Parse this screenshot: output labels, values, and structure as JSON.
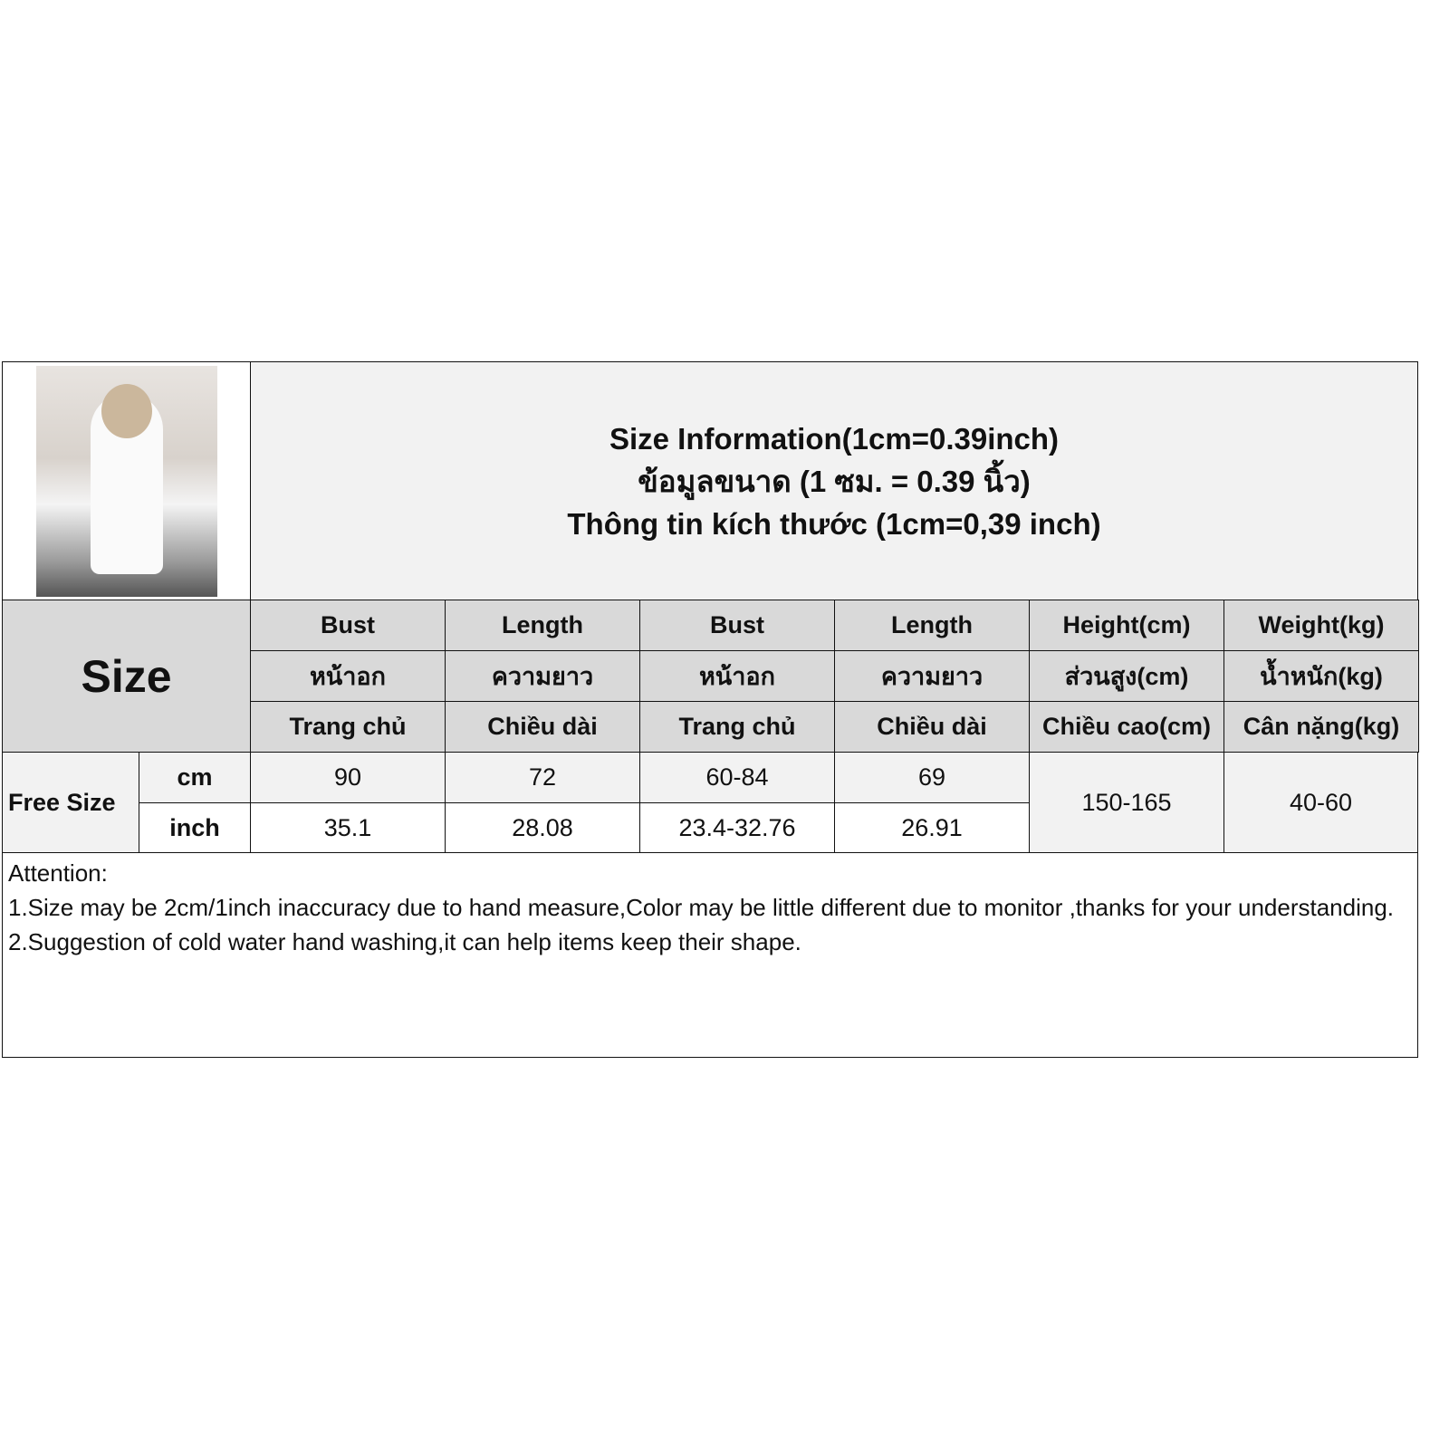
{
  "title": {
    "line1": "Size Information(1cm=0.39inch)",
    "line2": "ข้อมูลขนาด (1 ซม. = 0.39 นิ้ว)",
    "line3": "Thông tin kích thước (1cm=0,39 inch)"
  },
  "size_label": "Size",
  "columns": [
    {
      "en": "Bust",
      "th": "หน้าอก",
      "vi": "Trang chủ"
    },
    {
      "en": "Length",
      "th": "ความยาว",
      "vi": "Chiều dài"
    },
    {
      "en": "Bust",
      "th": "หน้าอก",
      "vi": "Trang chủ"
    },
    {
      "en": "Length",
      "th": "ความยาว",
      "vi": "Chiều dài"
    },
    {
      "en": "Height(cm)",
      "th": "ส่วนสูง(cm)",
      "vi": "Chiều cao(cm)"
    },
    {
      "en": "Weight(kg)",
      "th": "น้ำหนัก(kg)",
      "vi": "Cân nặng(kg)"
    }
  ],
  "row": {
    "name": "Free Size",
    "units": [
      "cm",
      "inch"
    ],
    "cm": [
      "90",
      "72",
      "60-84",
      "69"
    ],
    "inch": [
      "35.1",
      "28.08",
      "23.4-32.76",
      "26.91"
    ],
    "height": "150-165",
    "weight": "40-60"
  },
  "attention": {
    "heading": "Attention:",
    "line1": "1.Size may be 2cm/1inch inaccuracy due to hand measure,Color may be little different due to monitor ,thanks for your understanding.",
    "line2": "2.Suggestion of cold water hand washing,it can help items keep their shape."
  }
}
